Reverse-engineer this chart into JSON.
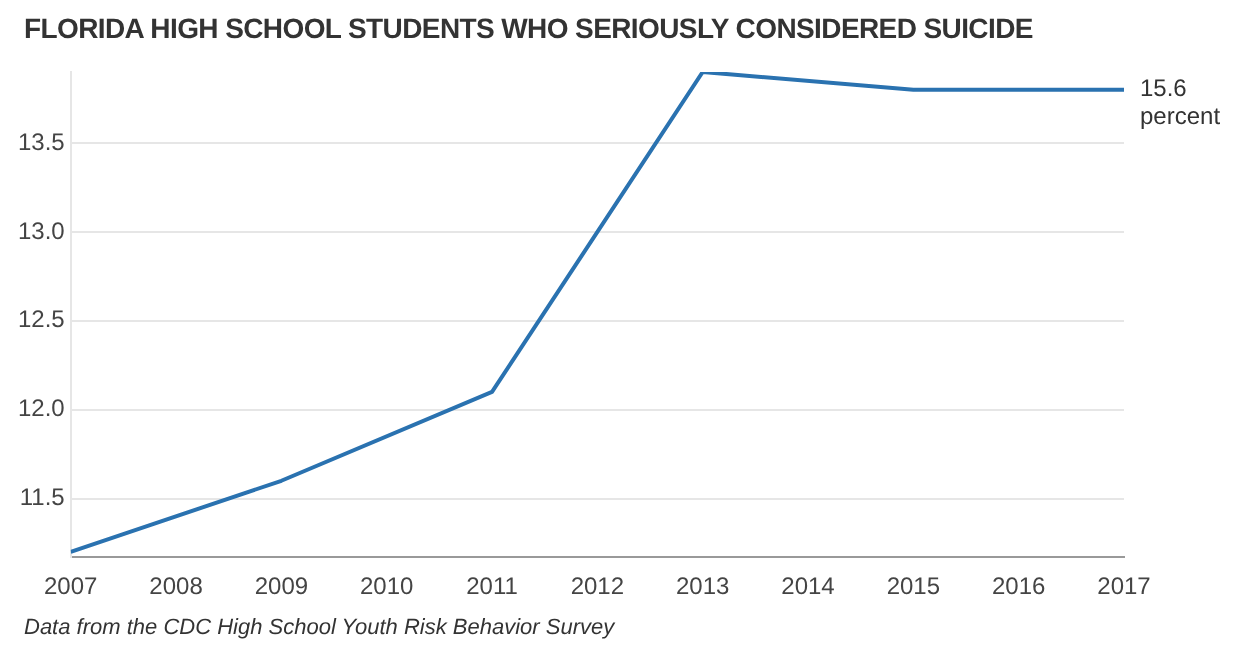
{
  "chart_data": {
    "type": "line",
    "title": "FLORIDA HIGH SCHOOL STUDENTS WHO SERIOUSLY CONSIDERED SUICIDE",
    "x": [
      2007,
      2009,
      2011,
      2013,
      2015,
      2017
    ],
    "series": [
      {
        "color": "#2a72b0",
        "values": [
          11.2,
          11.6,
          12.1,
          13.9,
          13.8,
          13.8
        ]
      }
    ],
    "xlim": [
      2007,
      2017
    ],
    "xticks": [
      2007,
      2008,
      2009,
      2010,
      2011,
      2012,
      2013,
      2014,
      2015,
      2016,
      2017
    ],
    "ylim": [
      11.17,
      13.9
    ],
    "yticks": [
      11.5,
      {
        "value": 12,
        "label": "12.0"
      },
      12.5,
      {
        "value": 13,
        "label": "13.0"
      },
      13.5
    ],
    "grid": "y",
    "legend": false,
    "marker": "none",
    "line_style": "solid",
    "annotations": [
      {
        "text": "15.6 percent",
        "x": 2017,
        "y": 13.8
      },
      "Data from the CDC High School Youth Risk Behavior Survey"
    ]
  }
}
